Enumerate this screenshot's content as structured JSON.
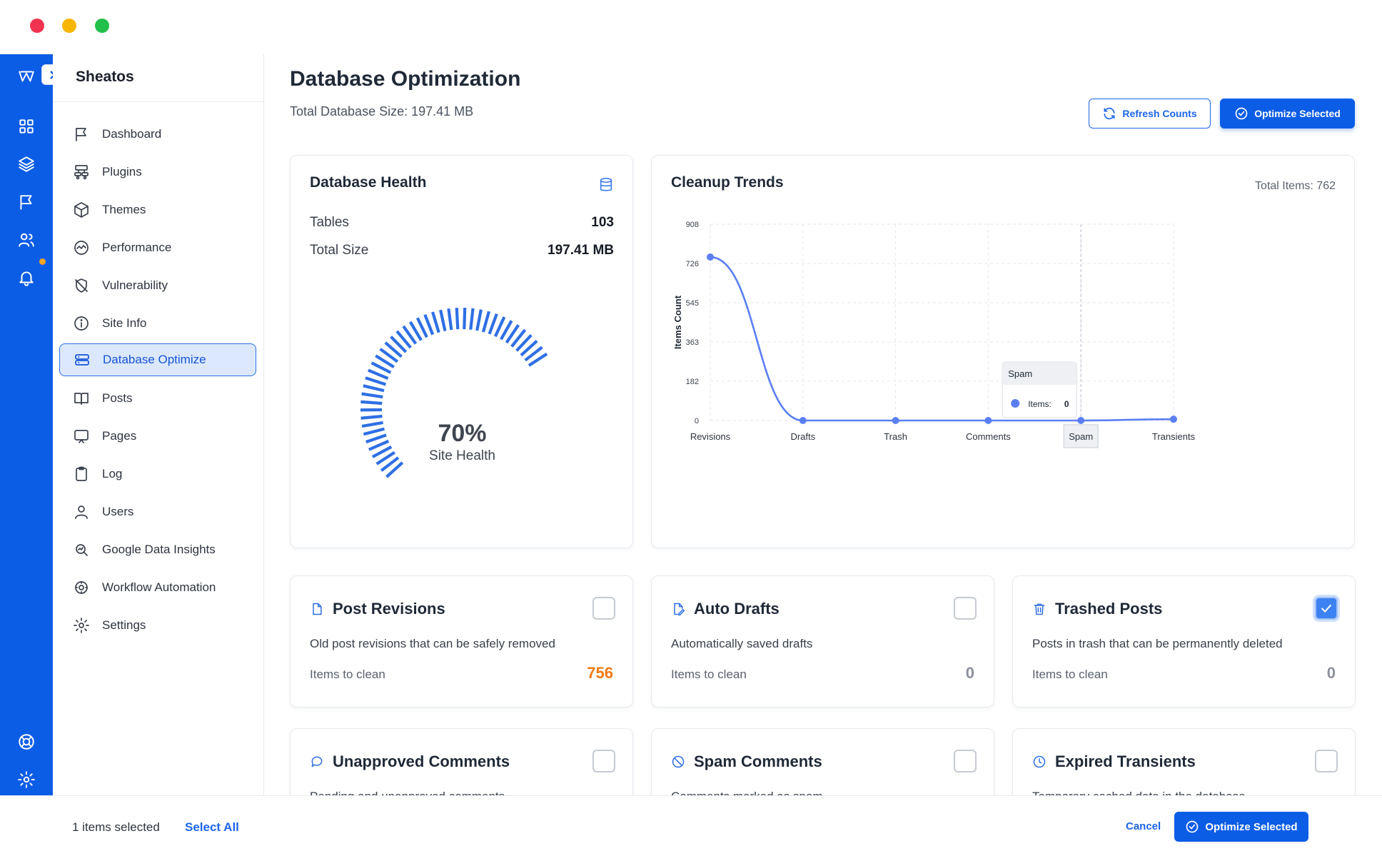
{
  "window": {
    "controls": [
      "close",
      "minimize",
      "maximize"
    ]
  },
  "rail": {
    "logo_icon": "w-logo-icon",
    "items": [
      "grid-icon",
      "layers-icon",
      "flag-icon",
      "users-icon",
      "bell-icon"
    ],
    "bottom": [
      "lifebuoy-icon",
      "gear-icon"
    ],
    "notification": true
  },
  "sidebar": {
    "brand": "Sheatos",
    "items": [
      {
        "label": "Dashboard",
        "icon": "flag-icon"
      },
      {
        "label": "Plugins",
        "icon": "plugin-icon"
      },
      {
        "label": "Themes",
        "icon": "cube-icon"
      },
      {
        "label": "Performance",
        "icon": "performance-icon"
      },
      {
        "label": "Vulnerability",
        "icon": "shield-off-icon"
      },
      {
        "label": "Site Info",
        "icon": "info-icon"
      },
      {
        "label": "Database Optimize",
        "icon": "database-icon",
        "active": true
      },
      {
        "label": "Posts",
        "icon": "book-icon"
      },
      {
        "label": "Pages",
        "icon": "monitor-icon"
      },
      {
        "label": "Log",
        "icon": "clipboard-icon"
      },
      {
        "label": "Users",
        "icon": "user-icon"
      },
      {
        "label": "Google Data Insights",
        "icon": "insights-icon"
      },
      {
        "label": "Workflow Automation",
        "icon": "automation-icon"
      },
      {
        "label": "Settings",
        "icon": "gear-icon"
      }
    ]
  },
  "header": {
    "title": "Database Optimization",
    "subtitle": "Total Database Size: 197.41 MB",
    "refresh_label": "Refresh Counts",
    "optimize_label": "Optimize Selected"
  },
  "health": {
    "title": "Database Health",
    "tables_label": "Tables",
    "tables_value": "103",
    "size_label": "Total Size",
    "size_value": "197.41 MB",
    "percent_text": "70%",
    "percent": 70,
    "gauge_label": "Site Health",
    "accent": "#2f6fe4"
  },
  "trends": {
    "title": "Cleanup Trends",
    "total_label": "Total Items: 762",
    "tooltip": {
      "title": "Spam",
      "label": "Items:",
      "value": "0"
    }
  },
  "chart_data": {
    "type": "line",
    "categories": [
      "Revisions",
      "Drafts",
      "Trash",
      "Comments",
      "Spam",
      "Transients"
    ],
    "series": [
      {
        "values": [
          756,
          0,
          0,
          0,
          0,
          6
        ]
      }
    ],
    "ylabel": "Items Count",
    "xlabel": "",
    "yticks": [
      0,
      182,
      363,
      545,
      726,
      908
    ],
    "ylim": [
      0,
      908
    ],
    "grid": true,
    "color": "#5b7ff2",
    "highlight": "Spam"
  },
  "options": [
    {
      "title": "Post Revisions",
      "icon": "file-icon",
      "desc": "Old post revisions that can be safely removed",
      "items_label": "Items to clean",
      "count": "756",
      "checked": false,
      "hot": true
    },
    {
      "title": "Auto Drafts",
      "icon": "edit-file-icon",
      "desc": "Automatically saved drafts",
      "items_label": "Items to clean",
      "count": "0",
      "checked": false
    },
    {
      "title": "Trashed Posts",
      "icon": "trash-icon",
      "desc": "Posts in trash that can be permanently deleted",
      "items_label": "Items to clean",
      "count": "0",
      "checked": true
    },
    {
      "title": "Unapproved Comments",
      "icon": "comment-icon",
      "desc": "Pending and unapproved comments",
      "checked": false
    },
    {
      "title": "Spam Comments",
      "icon": "ban-icon",
      "desc": "Comments marked as spam",
      "checked": false
    },
    {
      "title": "Expired Transients",
      "icon": "clock-icon",
      "desc": "Temporary cached data in the database",
      "checked": false
    }
  ],
  "footer": {
    "selected_text": "1 items selected",
    "select_all": "Select All",
    "cancel": "Cancel",
    "optimize_label": "Optimize Selected"
  }
}
